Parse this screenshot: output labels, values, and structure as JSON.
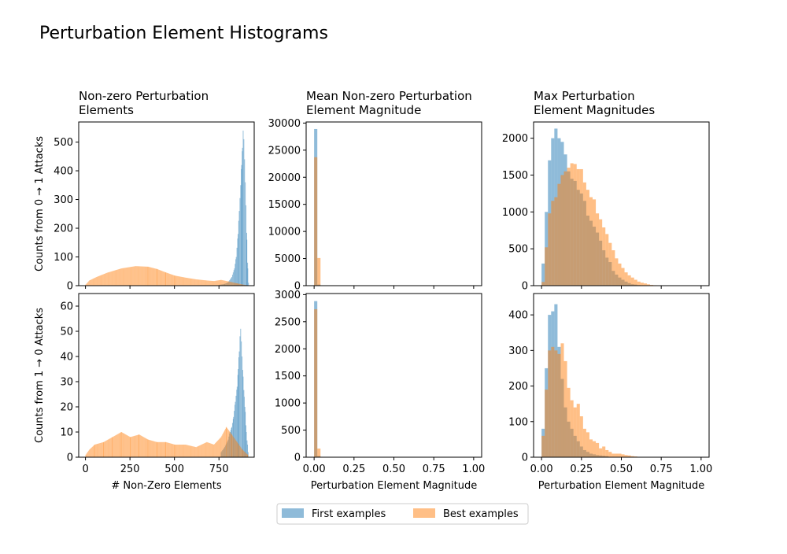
{
  "figure": {
    "title": "Perturbation Element Histograms",
    "colors": {
      "first": "#1f77b4",
      "best": "#ff7f0e"
    },
    "legend": {
      "placement": "bottom-center",
      "entries": [
        "First examples",
        "Best examples"
      ]
    }
  },
  "chart_data": [
    {
      "type": "histogram",
      "title": [
        "Non-zero Perturbation",
        "Elements"
      ],
      "xlabel": "",
      "ylabel": "Counts from 0 → 1 Attacks",
      "xlim": [
        -38,
        948
      ],
      "ylim": [
        0,
        570
      ],
      "xticks": [
        0,
        250,
        500,
        750
      ],
      "xtick_labels_visible": false,
      "yticks": [
        0,
        100,
        200,
        300,
        400,
        500
      ],
      "series": [
        {
          "name": "First examples",
          "color": "#1f77b4",
          "bin_width": 4,
          "points": [
            [
              750,
              3
            ],
            [
              780,
              6
            ],
            [
              800,
              12
            ],
            [
              820,
              30
            ],
            [
              835,
              60
            ],
            [
              845,
              100
            ],
            [
              855,
              180
            ],
            [
              862,
              260
            ],
            [
              870,
              350
            ],
            [
              875,
              420
            ],
            [
              880,
              480
            ],
            [
              884,
              540
            ],
            [
              888,
              510
            ],
            [
              892,
              440
            ],
            [
              896,
              360
            ],
            [
              900,
              280
            ],
            [
              905,
              160
            ],
            [
              910,
              60
            ],
            [
              914,
              10
            ]
          ]
        },
        {
          "name": "Best examples",
          "color": "#ff7f0e",
          "bin_width": 4,
          "points": [
            [
              0,
              4
            ],
            [
              20,
              18
            ],
            [
              60,
              30
            ],
            [
              120,
              45
            ],
            [
              200,
              60
            ],
            [
              280,
              68
            ],
            [
              350,
              66
            ],
            [
              400,
              58
            ],
            [
              450,
              46
            ],
            [
              500,
              35
            ],
            [
              560,
              28
            ],
            [
              620,
              22
            ],
            [
              680,
              18
            ],
            [
              720,
              16
            ],
            [
              760,
              20
            ],
            [
              800,
              15
            ],
            [
              850,
              8
            ],
            [
              890,
              3
            ],
            [
              910,
              1
            ]
          ]
        }
      ]
    },
    {
      "type": "histogram",
      "title": [
        "Mean Non-zero Perturbation",
        "Element Magnitude"
      ],
      "xlabel": "",
      "ylabel": "",
      "xlim": [
        -0.05,
        1.05
      ],
      "ylim": [
        0,
        30200
      ],
      "xticks": [
        0.0,
        0.25,
        0.5,
        0.75,
        1.0
      ],
      "xtick_labels_visible": false,
      "yticks": [
        0,
        5000,
        10000,
        15000,
        20000,
        25000,
        30000
      ],
      "series": [
        {
          "name": "First examples",
          "color": "#1f77b4",
          "bin_width": 0.02,
          "points": [
            [
              0.0,
              28900
            ],
            [
              0.02,
              200
            ]
          ]
        },
        {
          "name": "Best examples",
          "color": "#ff7f0e",
          "bin_width": 0.02,
          "points": [
            [
              0.0,
              23700
            ],
            [
              0.02,
              5100
            ]
          ]
        }
      ]
    },
    {
      "type": "histogram",
      "title": [
        "Max Perturbation",
        "Element Magnitudes"
      ],
      "xlabel": "",
      "ylabel": "",
      "xlim": [
        -0.05,
        1.05
      ],
      "ylim": [
        0,
        2220
      ],
      "xticks": [
        0.0,
        0.25,
        0.5,
        0.75,
        1.0
      ],
      "xtick_labels_visible": false,
      "yticks": [
        0,
        500,
        1000,
        1500,
        2000
      ],
      "series": [
        {
          "name": "First examples",
          "color": "#1f77b4",
          "bin_width": 0.02,
          "points": [
            [
              0.0,
              300
            ],
            [
              0.02,
              1000
            ],
            [
              0.04,
              1700
            ],
            [
              0.06,
              2000
            ],
            [
              0.08,
              2130
            ],
            [
              0.1,
              2000
            ],
            [
              0.12,
              1950
            ],
            [
              0.14,
              1780
            ],
            [
              0.16,
              1550
            ],
            [
              0.18,
              1450
            ],
            [
              0.2,
              1420
            ],
            [
              0.22,
              1300
            ],
            [
              0.24,
              1250
            ],
            [
              0.26,
              1150
            ],
            [
              0.28,
              950
            ],
            [
              0.3,
              880
            ],
            [
              0.32,
              800
            ],
            [
              0.34,
              720
            ],
            [
              0.36,
              610
            ],
            [
              0.38,
              480
            ],
            [
              0.4,
              380
            ],
            [
              0.42,
              320
            ],
            [
              0.44,
              200
            ],
            [
              0.46,
              150
            ],
            [
              0.48,
              110
            ],
            [
              0.5,
              80
            ],
            [
              0.52,
              55
            ],
            [
              0.54,
              35
            ],
            [
              0.56,
              20
            ],
            [
              0.58,
              15
            ],
            [
              0.6,
              8
            ],
            [
              0.62,
              5
            ]
          ]
        },
        {
          "name": "Best examples",
          "color": "#ff7f0e",
          "bin_width": 0.02,
          "points": [
            [
              0.0,
              50
            ],
            [
              0.02,
              520
            ],
            [
              0.04,
              980
            ],
            [
              0.06,
              1150
            ],
            [
              0.08,
              1200
            ],
            [
              0.1,
              1380
            ],
            [
              0.12,
              1500
            ],
            [
              0.14,
              1550
            ],
            [
              0.16,
              1600
            ],
            [
              0.18,
              1660
            ],
            [
              0.2,
              1650
            ],
            [
              0.22,
              1580
            ],
            [
              0.24,
              1580
            ],
            [
              0.26,
              1400
            ],
            [
              0.28,
              1300
            ],
            [
              0.3,
              1200
            ],
            [
              0.32,
              1170
            ],
            [
              0.34,
              980
            ],
            [
              0.36,
              900
            ],
            [
              0.38,
              790
            ],
            [
              0.4,
              700
            ],
            [
              0.42,
              580
            ],
            [
              0.44,
              480
            ],
            [
              0.46,
              370
            ],
            [
              0.48,
              300
            ],
            [
              0.5,
              240
            ],
            [
              0.52,
              180
            ],
            [
              0.54,
              140
            ],
            [
              0.56,
              110
            ],
            [
              0.58,
              80
            ],
            [
              0.6,
              55
            ],
            [
              0.62,
              40
            ],
            [
              0.64,
              30
            ],
            [
              0.66,
              18
            ],
            [
              0.68,
              10
            ],
            [
              0.7,
              6
            ],
            [
              0.72,
              3
            ]
          ]
        }
      ]
    },
    {
      "type": "histogram",
      "title": "",
      "xlabel": "# Non-Zero Elements",
      "ylabel": "Counts from 1 → 0 Attacks",
      "xlim": [
        -38,
        948
      ],
      "ylim": [
        0,
        65
      ],
      "xticks": [
        0,
        250,
        500,
        750
      ],
      "xtick_labels_visible": true,
      "yticks": [
        0,
        10,
        20,
        30,
        40,
        50,
        60
      ],
      "series": [
        {
          "name": "First examples",
          "color": "#1f77b4",
          "bin_width": 4,
          "points": [
            [
              760,
              2
            ],
            [
              780,
              4
            ],
            [
              800,
              7
            ],
            [
              810,
              10
            ],
            [
              820,
              12
            ],
            [
              830,
              16
            ],
            [
              840,
              22
            ],
            [
              850,
              28
            ],
            [
              856,
              35
            ],
            [
              862,
              42
            ],
            [
              866,
              48
            ],
            [
              870,
              51
            ],
            [
              874,
              46
            ],
            [
              878,
              40
            ],
            [
              884,
              32
            ],
            [
              890,
              24
            ],
            [
              896,
              18
            ],
            [
              902,
              10
            ],
            [
              908,
              5
            ],
            [
              912,
              2
            ]
          ]
        },
        {
          "name": "Best examples",
          "color": "#ff7f0e",
          "bin_width": 4,
          "points": [
            [
              0,
              1
            ],
            [
              20,
              3
            ],
            [
              50,
              5
            ],
            [
              100,
              6
            ],
            [
              150,
              8
            ],
            [
              200,
              10
            ],
            [
              250,
              8
            ],
            [
              300,
              9
            ],
            [
              350,
              7
            ],
            [
              400,
              6
            ],
            [
              450,
              6
            ],
            [
              500,
              5
            ],
            [
              560,
              5
            ],
            [
              620,
              4
            ],
            [
              680,
              6
            ],
            [
              720,
              5
            ],
            [
              760,
              8
            ],
            [
              790,
              12
            ],
            [
              820,
              9
            ],
            [
              850,
              6
            ],
            [
              880,
              3
            ],
            [
              910,
              1
            ]
          ]
        }
      ]
    },
    {
      "type": "histogram",
      "title": "",
      "xlabel": "Perturbation Element Magnitude",
      "ylabel": "",
      "xlim": [
        -0.05,
        1.05
      ],
      "ylim": [
        0,
        3020
      ],
      "xticks": [
        0.0,
        0.25,
        0.5,
        0.75,
        1.0
      ],
      "xtick_labels_visible": true,
      "yticks": [
        0,
        500,
        1000,
        1500,
        2000,
        2500,
        3000
      ],
      "series": [
        {
          "name": "First examples",
          "color": "#1f77b4",
          "bin_width": 0.02,
          "points": [
            [
              0.0,
              2880
            ],
            [
              0.02,
              20
            ]
          ]
        },
        {
          "name": "Best examples",
          "color": "#ff7f0e",
          "bin_width": 0.02,
          "points": [
            [
              0.0,
              2730
            ],
            [
              0.02,
              160
            ]
          ]
        }
      ]
    },
    {
      "type": "histogram",
      "title": "",
      "xlabel": "Perturbation Element Magnitude",
      "ylabel": "",
      "xlim": [
        -0.05,
        1.05
      ],
      "ylim": [
        0,
        460
      ],
      "xticks": [
        0.0,
        0.25,
        0.5,
        0.75,
        1.0
      ],
      "xtick_labels_visible": true,
      "yticks": [
        0,
        100,
        200,
        300,
        400
      ],
      "series": [
        {
          "name": "First examples",
          "color": "#1f77b4",
          "bin_width": 0.02,
          "points": [
            [
              0.0,
              80
            ],
            [
              0.02,
              250
            ],
            [
              0.04,
              400
            ],
            [
              0.06,
              410
            ],
            [
              0.08,
              430
            ],
            [
              0.1,
              310
            ],
            [
              0.12,
              220
            ],
            [
              0.14,
              140
            ],
            [
              0.16,
              100
            ],
            [
              0.18,
              80
            ],
            [
              0.2,
              60
            ],
            [
              0.22,
              45
            ],
            [
              0.24,
              30
            ],
            [
              0.26,
              20
            ],
            [
              0.28,
              15
            ],
            [
              0.3,
              10
            ],
            [
              0.32,
              8
            ],
            [
              0.34,
              6
            ],
            [
              0.36,
              5
            ],
            [
              0.38,
              4
            ],
            [
              0.4,
              3
            ]
          ]
        },
        {
          "name": "Best examples",
          "color": "#ff7f0e",
          "bin_width": 0.02,
          "points": [
            [
              0.0,
              60
            ],
            [
              0.02,
              190
            ],
            [
              0.04,
              300
            ],
            [
              0.06,
              310
            ],
            [
              0.08,
              300
            ],
            [
              0.1,
              290
            ],
            [
              0.12,
              320
            ],
            [
              0.14,
              270
            ],
            [
              0.16,
              195
            ],
            [
              0.18,
              160
            ],
            [
              0.2,
              140
            ],
            [
              0.22,
              150
            ],
            [
              0.24,
              115
            ],
            [
              0.26,
              80
            ],
            [
              0.28,
              70
            ],
            [
              0.3,
              50
            ],
            [
              0.32,
              45
            ],
            [
              0.34,
              40
            ],
            [
              0.36,
              25
            ],
            [
              0.38,
              30
            ],
            [
              0.4,
              20
            ],
            [
              0.42,
              15
            ],
            [
              0.44,
              10
            ],
            [
              0.46,
              10
            ],
            [
              0.48,
              10
            ],
            [
              0.5,
              8
            ],
            [
              0.52,
              6
            ],
            [
              0.54,
              5
            ],
            [
              0.56,
              3
            ],
            [
              0.58,
              2
            ]
          ]
        }
      ]
    }
  ]
}
